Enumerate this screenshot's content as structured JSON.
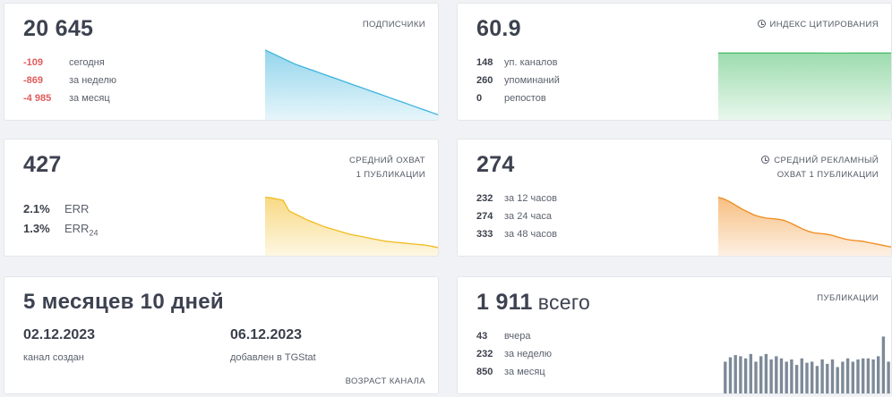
{
  "subscribers": {
    "total": "20 645",
    "label": "ПОДПИСЧИКИ",
    "rows": [
      {
        "value": "-109",
        "text": "сегодня"
      },
      {
        "value": "-869",
        "text": "за неделю"
      },
      {
        "value": "-4 985",
        "text": "за месяц"
      }
    ],
    "chart_data": {
      "type": "area",
      "color": "#3bb3dc",
      "values": [
        100,
        96,
        92,
        88,
        84,
        80,
        77,
        74,
        71,
        68,
        65,
        62,
        59,
        56,
        53,
        50,
        47,
        44,
        41,
        38,
        35,
        32,
        29,
        26,
        23,
        20,
        17,
        14,
        11,
        8
      ],
      "ylim": [
        0,
        110
      ]
    }
  },
  "citation": {
    "total": "60.9",
    "label": "ИНДЕКС ЦИТИРОВАНИЯ",
    "rows": [
      {
        "value": "148",
        "text": "уп. каналов"
      },
      {
        "value": "260",
        "text": "упоминаний"
      },
      {
        "value": "0",
        "text": "репостов"
      }
    ],
    "chart_data": {
      "type": "area",
      "color": "#4cbf6b",
      "values": [
        60.9,
        60.9,
        60.9,
        60.9,
        60.9,
        60.9,
        60.8,
        60.9,
        60.9,
        60.9
      ],
      "ylim": [
        0,
        70
      ]
    }
  },
  "reach": {
    "total": "427",
    "label_line1": "СРЕДНИЙ ОХВАТ",
    "label_line2": "1 ПУБЛИКАЦИИ",
    "err": {
      "value": "2.1%",
      "text": "ERR"
    },
    "err24": {
      "value": "1.3%",
      "text": "ERR",
      "sub": "24"
    },
    "chart_data": {
      "type": "area",
      "color": "#f2bb1f",
      "values": [
        100,
        99,
        97,
        95,
        77,
        72,
        67,
        62,
        58,
        54,
        50,
        47,
        44,
        41,
        38,
        36,
        34,
        32,
        30,
        28,
        26,
        25,
        24,
        23,
        22,
        21,
        20,
        19,
        17,
        15
      ],
      "ylim": [
        0,
        110
      ]
    }
  },
  "ad_reach": {
    "total": "274",
    "label_line1": "СРЕДНИЙ РЕКЛАМНЫЙ",
    "label_line2": "ОХВАТ 1 ПУБЛИКАЦИИ",
    "rows": [
      {
        "value": "232",
        "text": "за 12 часов"
      },
      {
        "value": "274",
        "text": "за 24 часа"
      },
      {
        "value": "333",
        "text": "за 48 часов"
      }
    ],
    "chart_data": {
      "type": "area",
      "color": "#f08a1c",
      "values": [
        100,
        97,
        92,
        86,
        80,
        75,
        70,
        67,
        65,
        64,
        63,
        61,
        57,
        52,
        47,
        43,
        40,
        39,
        38,
        36,
        33,
        30,
        28,
        27,
        26,
        24,
        22,
        20,
        18,
        16
      ],
      "ylim": [
        0,
        110
      ]
    }
  },
  "age": {
    "total": "5 месяцев 10 дней",
    "created_date": "02.12.2023",
    "created_text": "канал создан",
    "added_date": "06.12.2023",
    "added_text": "добавлен в TGStat",
    "label": "ВОЗРАСТ КАНАЛА"
  },
  "publications": {
    "total": "1 911",
    "unit": "всего",
    "label": "ПУБЛИКАЦИИ",
    "rows": [
      {
        "value": "43",
        "text": "вчера"
      },
      {
        "value": "232",
        "text": "за неделю"
      },
      {
        "value": "850",
        "text": "за месяц"
      }
    ],
    "chart_data": {
      "type": "bar",
      "color": "#7d8a98",
      "values": [
        30,
        34,
        36,
        35,
        33,
        37,
        30,
        35,
        37,
        32,
        35,
        33,
        30,
        32,
        27,
        33,
        29,
        30,
        26,
        32,
        28,
        32,
        25,
        30,
        33,
        30,
        32,
        33,
        33,
        32,
        35,
        53,
        30
      ],
      "ylim": [
        0,
        55
      ]
    }
  }
}
